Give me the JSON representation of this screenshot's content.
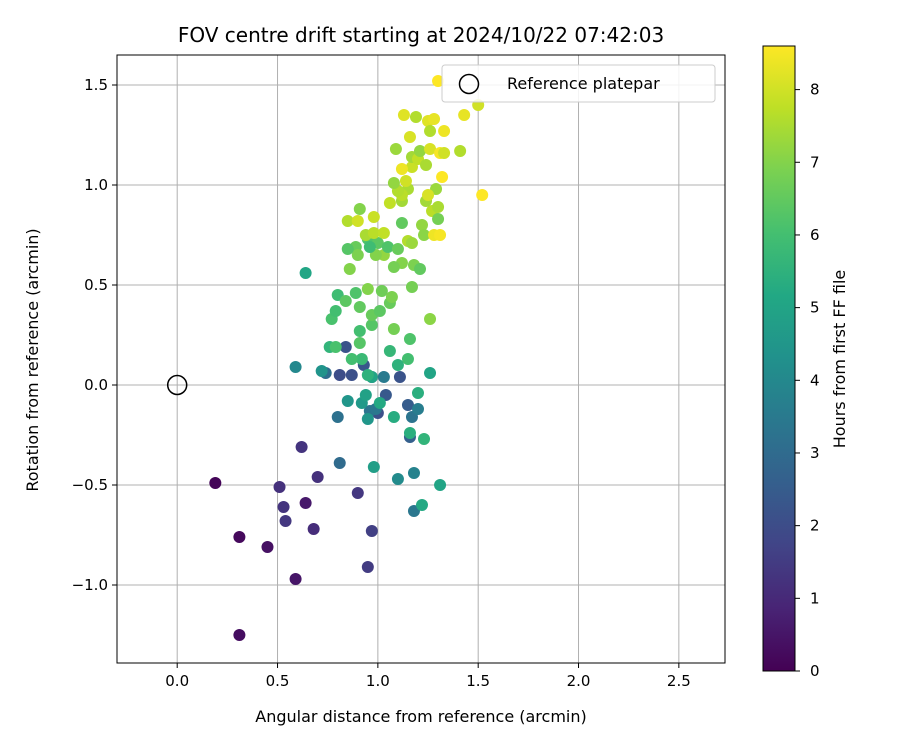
{
  "chart_data": {
    "type": "scatter",
    "title": "FOV centre drift starting at 2024/10/22 07:42:03",
    "xlabel": "Angular distance from reference (arcmin)",
    "ylabel": "Rotation from reference (arcmin)",
    "xlim": [
      -0.3,
      2.73
    ],
    "ylim": [
      -1.39,
      1.65
    ],
    "xticks": [
      0.0,
      0.5,
      1.0,
      1.5,
      2.0,
      2.5
    ],
    "xtick_labels": [
      "0.0",
      "0.5",
      "1.0",
      "1.5",
      "2.0",
      "2.5"
    ],
    "yticks": [
      -1.0,
      -0.5,
      0.0,
      0.5,
      1.0,
      1.5
    ],
    "ytick_labels": [
      "−1.0",
      "−0.5",
      "0.0",
      "0.5",
      "1.0",
      "1.5"
    ],
    "grid": true,
    "legend": {
      "placement": "top-right",
      "entries": [
        "Reference platepar"
      ]
    },
    "reference_point": {
      "name": "Reference platepar",
      "x": 0.0,
      "y": 0.0
    },
    "colorbar": {
      "label": "Hours from first FF file",
      "range": [
        0,
        8.6
      ],
      "ticks": [
        0,
        1,
        2,
        3,
        4,
        5,
        6,
        7,
        8
      ],
      "tick_labels": [
        "0",
        "1",
        "2",
        "3",
        "4",
        "5",
        "6",
        "7",
        "8"
      ],
      "colormap": "viridis"
    },
    "points": [
      {
        "x": 0.19,
        "y": -0.49,
        "c": 0.1
      },
      {
        "x": 0.31,
        "y": -0.76,
        "c": 0.2
      },
      {
        "x": 0.31,
        "y": -1.25,
        "c": 0.3
      },
      {
        "x": 0.45,
        "y": -0.81,
        "c": 0.4
      },
      {
        "x": 0.59,
        "y": -0.97,
        "c": 0.5
      },
      {
        "x": 0.64,
        "y": -0.59,
        "c": 0.6
      },
      {
        "x": 0.51,
        "y": -0.51,
        "c": 1.2
      },
      {
        "x": 0.53,
        "y": -0.61,
        "c": 1.3
      },
      {
        "x": 0.54,
        "y": -0.68,
        "c": 1.4
      },
      {
        "x": 0.62,
        "y": -0.31,
        "c": 1.3
      },
      {
        "x": 0.68,
        "y": -0.72,
        "c": 1.1
      },
      {
        "x": 0.7,
        "y": -0.46,
        "c": 1.2
      },
      {
        "x": 0.9,
        "y": -0.54,
        "c": 1.4
      },
      {
        "x": 0.95,
        "y": -0.91,
        "c": 1.5
      },
      {
        "x": 0.97,
        "y": -0.73,
        "c": 1.6
      },
      {
        "x": 0.81,
        "y": 0.05,
        "c": 2.0
      },
      {
        "x": 0.84,
        "y": 0.19,
        "c": 2.2
      },
      {
        "x": 0.87,
        "y": 0.05,
        "c": 2.1
      },
      {
        "x": 0.93,
        "y": 0.1,
        "c": 2.3
      },
      {
        "x": 0.97,
        "y": 0.04,
        "c": 2.0
      },
      {
        "x": 1.0,
        "y": -0.14,
        "c": 2.1
      },
      {
        "x": 1.04,
        "y": -0.05,
        "c": 2.4
      },
      {
        "x": 1.11,
        "y": 0.04,
        "c": 2.2
      },
      {
        "x": 1.15,
        "y": -0.1,
        "c": 2.5
      },
      {
        "x": 1.16,
        "y": -0.26,
        "c": 2.6
      },
      {
        "x": 0.81,
        "y": -0.39,
        "c": 3.0
      },
      {
        "x": 0.8,
        "y": -0.16,
        "c": 3.2
      },
      {
        "x": 0.74,
        "y": 0.06,
        "c": 3.1
      },
      {
        "x": 0.96,
        "y": -0.13,
        "c": 3.3
      },
      {
        "x": 0.99,
        "y": -0.12,
        "c": 3.4
      },
      {
        "x": 1.03,
        "y": 0.04,
        "c": 3.5
      },
      {
        "x": 1.17,
        "y": -0.16,
        "c": 3.3
      },
      {
        "x": 1.2,
        "y": -0.12,
        "c": 3.6
      },
      {
        "x": 1.18,
        "y": -0.63,
        "c": 3.4
      },
      {
        "x": 1.18,
        "y": -0.44,
        "c": 3.8
      },
      {
        "x": 1.1,
        "y": -0.47,
        "c": 4.1
      },
      {
        "x": 0.59,
        "y": 0.09,
        "c": 4.0
      },
      {
        "x": 0.72,
        "y": 0.07,
        "c": 4.4
      },
      {
        "x": 0.85,
        "y": -0.08,
        "c": 4.5
      },
      {
        "x": 0.92,
        "y": -0.09,
        "c": 4.6
      },
      {
        "x": 0.95,
        "y": -0.17,
        "c": 4.5
      },
      {
        "x": 0.98,
        "y": -0.41,
        "c": 4.8
      },
      {
        "x": 0.94,
        "y": -0.05,
        "c": 4.9
      },
      {
        "x": 0.97,
        "y": 0.04,
        "c": 5.0
      },
      {
        "x": 1.01,
        "y": -0.09,
        "c": 5.2
      },
      {
        "x": 1.08,
        "y": -0.16,
        "c": 5.3
      },
      {
        "x": 1.16,
        "y": -0.24,
        "c": 5.4
      },
      {
        "x": 1.22,
        "y": -0.6,
        "c": 5.2
      },
      {
        "x": 1.31,
        "y": -0.5,
        "c": 5.0
      },
      {
        "x": 1.23,
        "y": -0.27,
        "c": 5.6
      },
      {
        "x": 1.2,
        "y": -0.04,
        "c": 5.4
      },
      {
        "x": 1.26,
        "y": 0.06,
        "c": 5.0
      },
      {
        "x": 1.1,
        "y": 0.1,
        "c": 5.5
      },
      {
        "x": 0.64,
        "y": 0.56,
        "c": 5.1
      },
      {
        "x": 0.76,
        "y": 0.19,
        "c": 5.6
      },
      {
        "x": 0.92,
        "y": 0.13,
        "c": 5.8
      },
      {
        "x": 0.95,
        "y": 0.05,
        "c": 5.5
      },
      {
        "x": 1.06,
        "y": 0.17,
        "c": 5.7
      },
      {
        "x": 1.15,
        "y": 0.13,
        "c": 6.0
      },
      {
        "x": 1.16,
        "y": 0.23,
        "c": 6.2
      },
      {
        "x": 0.79,
        "y": 0.19,
        "c": 6.1
      },
      {
        "x": 0.87,
        "y": 0.13,
        "c": 6.0
      },
      {
        "x": 0.91,
        "y": 0.21,
        "c": 6.3
      },
      {
        "x": 0.77,
        "y": 0.33,
        "c": 6.1
      },
      {
        "x": 0.79,
        "y": 0.37,
        "c": 6.0
      },
      {
        "x": 0.8,
        "y": 0.45,
        "c": 5.9
      },
      {
        "x": 0.84,
        "y": 0.42,
        "c": 6.4
      },
      {
        "x": 0.89,
        "y": 0.46,
        "c": 6.2
      },
      {
        "x": 0.91,
        "y": 0.39,
        "c": 6.5
      },
      {
        "x": 0.91,
        "y": 0.27,
        "c": 6.0
      },
      {
        "x": 0.97,
        "y": 0.3,
        "c": 6.3
      },
      {
        "x": 0.97,
        "y": 0.35,
        "c": 6.6
      },
      {
        "x": 1.01,
        "y": 0.37,
        "c": 6.4
      },
      {
        "x": 1.06,
        "y": 0.41,
        "c": 6.6
      },
      {
        "x": 1.08,
        "y": 0.28,
        "c": 6.8
      },
      {
        "x": 1.02,
        "y": 0.47,
        "c": 6.7
      },
      {
        "x": 0.95,
        "y": 0.48,
        "c": 7.0
      },
      {
        "x": 1.07,
        "y": 0.44,
        "c": 6.9
      },
      {
        "x": 1.17,
        "y": 0.49,
        "c": 6.8
      },
      {
        "x": 1.26,
        "y": 0.33,
        "c": 7.1
      },
      {
        "x": 1.12,
        "y": 0.61,
        "c": 7.0
      },
      {
        "x": 1.18,
        "y": 0.6,
        "c": 6.9
      },
      {
        "x": 1.21,
        "y": 0.58,
        "c": 6.5
      },
      {
        "x": 1.08,
        "y": 0.59,
        "c": 6.8
      },
      {
        "x": 1.03,
        "y": 0.65,
        "c": 7.2
      },
      {
        "x": 0.99,
        "y": 0.65,
        "c": 7.0
      },
      {
        "x": 0.89,
        "y": 0.69,
        "c": 6.6
      },
      {
        "x": 0.9,
        "y": 0.65,
        "c": 6.9
      },
      {
        "x": 0.86,
        "y": 0.58,
        "c": 7.0
      },
      {
        "x": 0.85,
        "y": 0.68,
        "c": 6.3
      },
      {
        "x": 0.95,
        "y": 0.73,
        "c": 6.2
      },
      {
        "x": 1.0,
        "y": 0.71,
        "c": 6.4
      },
      {
        "x": 1.05,
        "y": 0.69,
        "c": 6.2
      },
      {
        "x": 1.1,
        "y": 0.68,
        "c": 6.6
      },
      {
        "x": 1.12,
        "y": 0.81,
        "c": 6.5
      },
      {
        "x": 0.96,
        "y": 0.69,
        "c": 5.9
      },
      {
        "x": 0.91,
        "y": 0.88,
        "c": 7.0
      },
      {
        "x": 0.94,
        "y": 0.75,
        "c": 7.5
      },
      {
        "x": 0.98,
        "y": 0.76,
        "c": 7.7
      },
      {
        "x": 1.03,
        "y": 0.76,
        "c": 7.8
      },
      {
        "x": 0.98,
        "y": 0.84,
        "c": 7.9
      },
      {
        "x": 0.85,
        "y": 0.82,
        "c": 7.6
      },
      {
        "x": 0.9,
        "y": 0.82,
        "c": 8.0
      },
      {
        "x": 1.06,
        "y": 0.91,
        "c": 7.8
      },
      {
        "x": 1.12,
        "y": 0.92,
        "c": 7.4
      },
      {
        "x": 1.15,
        "y": 0.72,
        "c": 7.6
      },
      {
        "x": 1.17,
        "y": 0.71,
        "c": 7.3
      },
      {
        "x": 1.22,
        "y": 0.8,
        "c": 7.2
      },
      {
        "x": 1.23,
        "y": 0.75,
        "c": 7.1
      },
      {
        "x": 1.28,
        "y": 0.75,
        "c": 8.4
      },
      {
        "x": 1.31,
        "y": 0.75,
        "c": 8.5
      },
      {
        "x": 1.27,
        "y": 0.87,
        "c": 7.7
      },
      {
        "x": 1.3,
        "y": 0.83,
        "c": 6.8
      },
      {
        "x": 1.24,
        "y": 0.92,
        "c": 7.4
      },
      {
        "x": 1.3,
        "y": 0.89,
        "c": 7.5
      },
      {
        "x": 1.29,
        "y": 0.98,
        "c": 7.3
      },
      {
        "x": 1.25,
        "y": 0.95,
        "c": 8.1
      },
      {
        "x": 1.15,
        "y": 0.98,
        "c": 7.5
      },
      {
        "x": 1.12,
        "y": 0.95,
        "c": 7.7
      },
      {
        "x": 1.1,
        "y": 0.97,
        "c": 7.6
      },
      {
        "x": 1.08,
        "y": 1.01,
        "c": 7.2
      },
      {
        "x": 1.14,
        "y": 1.02,
        "c": 8.0
      },
      {
        "x": 1.17,
        "y": 1.09,
        "c": 7.9
      },
      {
        "x": 1.17,
        "y": 1.14,
        "c": 7.4
      },
      {
        "x": 1.2,
        "y": 1.13,
        "c": 7.8
      },
      {
        "x": 1.21,
        "y": 1.17,
        "c": 7.2
      },
      {
        "x": 1.24,
        "y": 1.1,
        "c": 7.5
      },
      {
        "x": 1.26,
        "y": 1.18,
        "c": 8.1
      },
      {
        "x": 1.25,
        "y": 1.32,
        "c": 8.2
      },
      {
        "x": 1.26,
        "y": 1.27,
        "c": 7.6
      },
      {
        "x": 1.28,
        "y": 1.33,
        "c": 8.3
      },
      {
        "x": 1.33,
        "y": 1.27,
        "c": 8.4
      },
      {
        "x": 1.31,
        "y": 1.16,
        "c": 8.5
      },
      {
        "x": 1.32,
        "y": 1.04,
        "c": 8.6
      },
      {
        "x": 1.12,
        "y": 1.08,
        "c": 8.4
      },
      {
        "x": 1.09,
        "y": 1.18,
        "c": 7.3
      },
      {
        "x": 1.16,
        "y": 1.24,
        "c": 8.1
      },
      {
        "x": 1.19,
        "y": 1.34,
        "c": 7.6
      },
      {
        "x": 1.13,
        "y": 1.35,
        "c": 8.2
      },
      {
        "x": 1.41,
        "y": 1.17,
        "c": 7.6
      },
      {
        "x": 1.43,
        "y": 1.35,
        "c": 8.3
      },
      {
        "x": 1.5,
        "y": 1.4,
        "c": 8.0
      },
      {
        "x": 1.52,
        "y": 0.95,
        "c": 8.6
      },
      {
        "x": 1.3,
        "y": 1.52,
        "c": 8.6
      },
      {
        "x": 1.33,
        "y": 1.16,
        "c": 8.0
      }
    ]
  }
}
